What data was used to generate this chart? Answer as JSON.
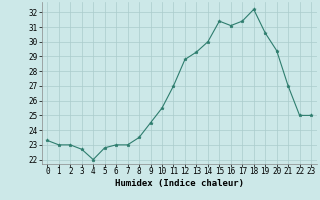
{
  "x": [
    0,
    1,
    2,
    3,
    4,
    5,
    6,
    7,
    8,
    9,
    10,
    11,
    12,
    13,
    14,
    15,
    16,
    17,
    18,
    19,
    20,
    21,
    22,
    23
  ],
  "y": [
    23.3,
    23.0,
    23.0,
    22.7,
    22.0,
    22.8,
    23.0,
    23.0,
    23.5,
    24.5,
    25.5,
    27.0,
    28.8,
    29.3,
    30.0,
    31.4,
    31.1,
    31.4,
    32.2,
    30.6,
    29.4,
    27.0,
    25.0,
    25.0
  ],
  "line_color": "#2e7d6e",
  "marker": "*",
  "marker_size": 2.5,
  "bg_color": "#cce8e8",
  "grid_color": "#aacccc",
  "xlabel": "Humidex (Indice chaleur)",
  "xlim": [
    -0.5,
    23.5
  ],
  "ylim": [
    21.7,
    32.7
  ],
  "yticks": [
    22,
    23,
    24,
    25,
    26,
    27,
    28,
    29,
    30,
    31,
    32
  ],
  "xticks": [
    0,
    1,
    2,
    3,
    4,
    5,
    6,
    7,
    8,
    9,
    10,
    11,
    12,
    13,
    14,
    15,
    16,
    17,
    18,
    19,
    20,
    21,
    22,
    23
  ],
  "tick_fontsize": 5.5,
  "label_fontsize": 6.5
}
